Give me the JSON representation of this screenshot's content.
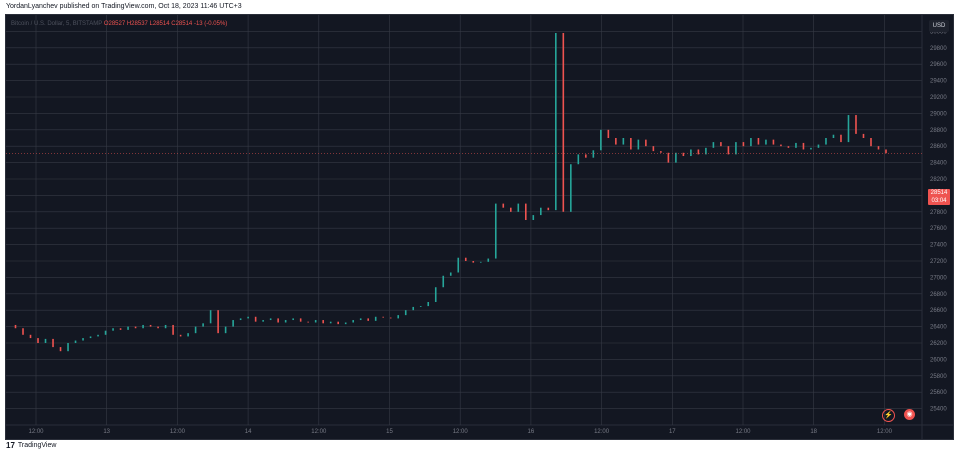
{
  "publisher_line": "YordanLyanchev published on TradingView.com, Oct 18, 2023 11:46 UTC+3",
  "legend": {
    "symbol": "Bitcoin / U.S. Dollar, 5, BITSTAMP",
    "o": "O28527",
    "h": "H28537",
    "l": "L28514",
    "c": "C28514",
    "change": "-13 (-0.05%)"
  },
  "currency": "USD",
  "price_tag": {
    "price": "28514",
    "countdown": "03:04"
  },
  "footer_brand": "TradingView",
  "icons": {
    "replay": "lightning-icon",
    "snapshot": "camera-icon"
  },
  "colors": {
    "up": "#26a69a",
    "down": "#ef5350",
    "bg": "#131722",
    "grid": "#363a45"
  },
  "chart_data": {
    "type": "line",
    "title": "Bitcoin / U.S. Dollar, 5, BITSTAMP",
    "ylim": [
      25200,
      30200
    ],
    "y_ticks": [
      25400,
      25600,
      25800,
      26000,
      26200,
      26400,
      26600,
      26800,
      27000,
      27200,
      27400,
      27600,
      27800,
      28000,
      28200,
      28400,
      28600,
      28800,
      29000,
      29200,
      29400,
      29600,
      29800,
      30000
    ],
    "x_ticks": [
      "12:00",
      "13",
      "12:00",
      "14",
      "12:00",
      "15",
      "12:00",
      "16",
      "12:00",
      "17",
      "12:00",
      "18",
      "12:00"
    ],
    "series": [
      {
        "values": [
          26420,
          26380,
          26300,
          26260,
          26200,
          26250,
          26150,
          26100,
          26200,
          26230,
          26260,
          26280,
          26300,
          26350,
          26380,
          26360,
          26400,
          26380,
          26420,
          26400,
          26380,
          26420,
          26300,
          26280,
          26320,
          26400,
          26440,
          26600,
          26320,
          26400,
          26480,
          26500,
          26520,
          26460,
          26480,
          26500,
          26450,
          26480,
          26500,
          26460,
          26450,
          26480,
          26440,
          26460,
          26430,
          26450,
          26480,
          26500,
          26470,
          26520,
          26510,
          26500,
          26540,
          26600,
          26640,
          26650,
          26700,
          26880,
          27020,
          27060,
          27240,
          27200,
          27180,
          27190,
          27230,
          27900,
          27850,
          27800,
          27900,
          27700,
          27760,
          27850,
          27820,
          29980,
          27800,
          28380,
          28500,
          28460,
          28550,
          28800,
          28700,
          28620,
          28700,
          28560,
          28680,
          28600,
          28540,
          28520,
          28400,
          28520,
          28480,
          28560,
          28500,
          28580,
          28650,
          28600,
          28500,
          28650,
          28600,
          28700,
          28620,
          28680,
          28620,
          28600,
          28580,
          28640,
          28560,
          28580,
          28620,
          28700,
          28740,
          28650,
          28980,
          28750,
          28700,
          28600,
          28560,
          28514
        ]
      }
    ]
  }
}
